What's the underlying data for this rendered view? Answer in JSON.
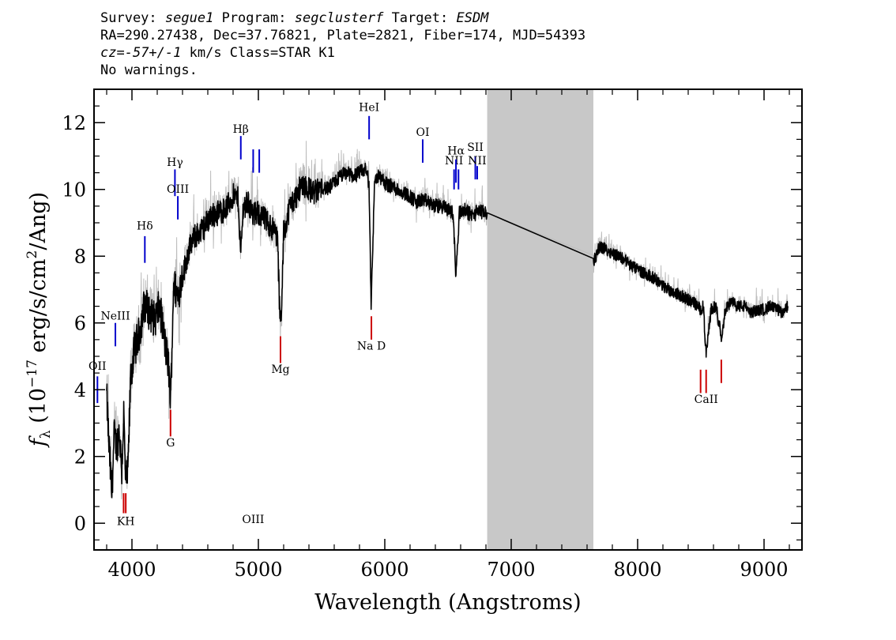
{
  "header": {
    "survey_label": "Survey:",
    "survey": "segue1",
    "program_label": "Program:",
    "program": "segclusterf",
    "target_label": "Target:",
    "target": "ESDM",
    "line2": "RA=290.27438, Dec=37.76821, Plate=2821, Fiber=174, MJD=54393",
    "cz_label": "cz=",
    "cz_value": "-57+/-1",
    "cz_rest": " km/s Class=STAR K1",
    "warnings": "No warnings."
  },
  "chart_data": {
    "type": "line",
    "xlabel": "Wavelength (Angstroms)",
    "ylabel_parts": {
      "f": "f",
      "lambda_sub": "λ",
      "open": " (10",
      "exp": "−17",
      "mid": " erg/s/cm",
      "sq": "2",
      "close": "/Ang)"
    },
    "xlim": [
      3700,
      9300
    ],
    "ylim": [
      -0.8,
      13.0
    ],
    "xticks": [
      {
        "value": 4000,
        "label": "4000"
      },
      {
        "value": 5000,
        "label": "5000"
      },
      {
        "value": 6000,
        "label": "6000"
      },
      {
        "value": 7000,
        "label": "7000"
      },
      {
        "value": 8000,
        "label": "8000"
      },
      {
        "value": 9000,
        "label": "9000"
      }
    ],
    "yticks": [
      {
        "value": 0,
        "label": "0"
      },
      {
        "value": 2,
        "label": "2"
      },
      {
        "value": 4,
        "label": "4"
      },
      {
        "value": 6,
        "label": "6"
      },
      {
        "value": 8,
        "label": "8"
      },
      {
        "value": 10,
        "label": "10"
      },
      {
        "value": 12,
        "label": "12"
      }
    ],
    "masked_region": {
      "x": [
        6810,
        7650
      ],
      "color": "#c8c8c8"
    },
    "series": [
      {
        "style": "flux",
        "color": "#000000",
        "error_color": "#bdbdbd",
        "x": [
          3800,
          3820,
          3840,
          3860,
          3880,
          3900,
          3920,
          3935,
          3950,
          3968,
          3990,
          4020,
          4060,
          4100,
          4140,
          4180,
          4220,
          4260,
          4290,
          4305,
          4330,
          4360,
          4400,
          4450,
          4500,
          4560,
          4620,
          4680,
          4740,
          4800,
          4840,
          4861,
          4880,
          4920,
          4960,
          5000,
          5050,
          5100,
          5150,
          5172,
          5183,
          5200,
          5250,
          5300,
          5350,
          5400,
          5450,
          5500,
          5550,
          5600,
          5650,
          5700,
          5750,
          5800,
          5850,
          5875,
          5892,
          5920,
          5960,
          6000,
          6050,
          6100,
          6150,
          6200,
          6250,
          6300,
          6350,
          6400,
          6450,
          6500,
          6540,
          6563,
          6590,
          6620,
          6660,
          6700,
          6740,
          6780,
          6810,
          7650,
          7700,
          7750,
          7800,
          7850,
          7900,
          7950,
          8000,
          8050,
          8100,
          8150,
          8200,
          8250,
          8300,
          8350,
          8400,
          8450,
          8498,
          8520,
          8542,
          8580,
          8620,
          8662,
          8700,
          8750,
          8800,
          8850,
          8900,
          8950,
          9000,
          9050,
          9100,
          9150,
          9190
        ],
        "y": [
          3.8,
          2.2,
          0.9,
          2.6,
          2.3,
          2.8,
          1.6,
          3.3,
          1.2,
          1.5,
          4.4,
          5.2,
          5.7,
          6.6,
          6.3,
          6.1,
          6.5,
          5.4,
          4.7,
          3.6,
          7.2,
          6.8,
          7.4,
          8.2,
          8.6,
          8.8,
          9.2,
          9.3,
          9.4,
          9.8,
          9.7,
          8.0,
          9.5,
          9.6,
          9.2,
          9.3,
          9.1,
          8.9,
          8.6,
          6.0,
          6.2,
          8.7,
          9.5,
          9.8,
          10.2,
          10.0,
          9.9,
          10.1,
          10.0,
          10.2,
          10.4,
          10.5,
          10.4,
          10.5,
          10.6,
          10.2,
          6.6,
          10.3,
          10.4,
          10.2,
          10.1,
          10.0,
          9.9,
          9.8,
          9.6,
          9.7,
          9.6,
          9.5,
          9.5,
          9.4,
          9.3,
          7.4,
          9.3,
          9.4,
          9.3,
          9.2,
          9.4,
          9.3,
          9.3,
          7.8,
          8.3,
          8.2,
          8.1,
          8.0,
          7.9,
          7.7,
          7.6,
          7.5,
          7.4,
          7.3,
          7.1,
          7.0,
          6.9,
          6.8,
          6.7,
          6.6,
          6.4,
          6.5,
          5.0,
          6.4,
          6.5,
          5.6,
          6.5,
          6.6,
          6.5,
          6.5,
          6.3,
          6.4,
          6.4,
          6.5,
          6.4,
          6.3,
          6.5
        ]
      }
    ],
    "lines": [
      {
        "label": "OII",
        "x": 3727,
        "type": "emission",
        "color": "#0000cc",
        "y0": 3.6,
        "y1": 4.4,
        "ly": 4.6
      },
      {
        "label": "NeIII",
        "x": 3869,
        "type": "emission",
        "color": "#0000cc",
        "y0": 5.3,
        "y1": 6.0,
        "ly": 6.1
      },
      {
        "label": "Hδ",
        "x": 4102,
        "type": "emission",
        "color": "#0000cc",
        "y0": 7.8,
        "y1": 8.6,
        "ly": 8.8
      },
      {
        "label": "Hγ",
        "x": 4340,
        "type": "emission",
        "color": "#0000cc",
        "y0": 9.8,
        "y1": 10.6,
        "ly": 10.7
      },
      {
        "label": "OIII",
        "x": 4363,
        "type": "emission",
        "color": "#0000cc",
        "y0": 9.1,
        "y1": 9.8,
        "ly": 9.9
      },
      {
        "label": "Hβ",
        "x": 4861,
        "type": "emission",
        "color": "#0000cc",
        "y0": 10.9,
        "y1": 11.6,
        "ly": 11.7
      },
      {
        "label": "OIII",
        "x": 4959,
        "type": "emission",
        "color": "#0000cc",
        "y0": 10.5,
        "y1": 11.2,
        "ly": 0
      },
      {
        "label": "",
        "x": 5007,
        "type": "emission",
        "color": "#0000cc",
        "y0": 10.5,
        "y1": 11.2,
        "ly": 0
      },
      {
        "label": "HeI",
        "x": 5876,
        "type": "emission",
        "color": "#0000cc",
        "y0": 11.5,
        "y1": 12.2,
        "ly": 12.35
      },
      {
        "label": "OI",
        "x": 6300,
        "type": "emission",
        "color": "#0000cc",
        "y0": 10.8,
        "y1": 11.5,
        "ly": 11.6
      },
      {
        "label": "NII",
        "x": 6548,
        "type": "emission",
        "color": "#0000cc",
        "y0": 10.0,
        "y1": 10.6,
        "ly": 10.75
      },
      {
        "label": "Hα",
        "x": 6563,
        "type": "emission",
        "color": "#0000cc",
        "y0": 10.2,
        "y1": 10.9,
        "ly": 11.05
      },
      {
        "label": "",
        "x": 6583,
        "type": "emission",
        "color": "#0000cc",
        "y0": 10.0,
        "y1": 10.6,
        "ly": 0
      },
      {
        "label": "SII",
        "x": 6716,
        "type": "emission",
        "color": "#0000cc",
        "y0": 10.3,
        "y1": 11.0,
        "ly": 11.15
      },
      {
        "label": "NII",
        "x": 6731,
        "type": "emission",
        "color": "#0000cc",
        "y0": 10.3,
        "y1": 10.7,
        "ly": 10.75
      },
      {
        "label": "KH",
        "x": 3951,
        "type": "absorption",
        "color": "#cc0000",
        "y0": 0.3,
        "y1": 0.9,
        "ly": -0.05
      },
      {
        "label": "",
        "x": 3934,
        "type": "absorption",
        "color": "#cc0000",
        "y0": 0.3,
        "y1": 0.9,
        "ly": 0
      },
      {
        "label": "G",
        "x": 4305,
        "type": "absorption",
        "color": "#cc0000",
        "y0": 2.6,
        "y1": 3.4,
        "ly": 2.3
      },
      {
        "label": "Mg",
        "x": 5175,
        "type": "absorption",
        "color": "#cc0000",
        "y0": 4.8,
        "y1": 5.6,
        "ly": 4.5
      },
      {
        "label": "Na D",
        "x": 5894,
        "type": "absorption",
        "color": "#cc0000",
        "y0": 5.5,
        "y1": 6.2,
        "ly": 5.2
      },
      {
        "label": "CaII",
        "x": 8542,
        "type": "absorption",
        "color": "#cc0000",
        "y0": 3.9,
        "y1": 4.6,
        "ly": 3.6
      },
      {
        "label": "",
        "x": 8498,
        "type": "absorption",
        "color": "#cc0000",
        "y0": 3.9,
        "y1": 4.6,
        "ly": 0
      },
      {
        "label": "",
        "x": 8662,
        "type": "absorption",
        "color": "#cc0000",
        "y0": 4.2,
        "y1": 4.9,
        "ly": 0
      }
    ]
  }
}
